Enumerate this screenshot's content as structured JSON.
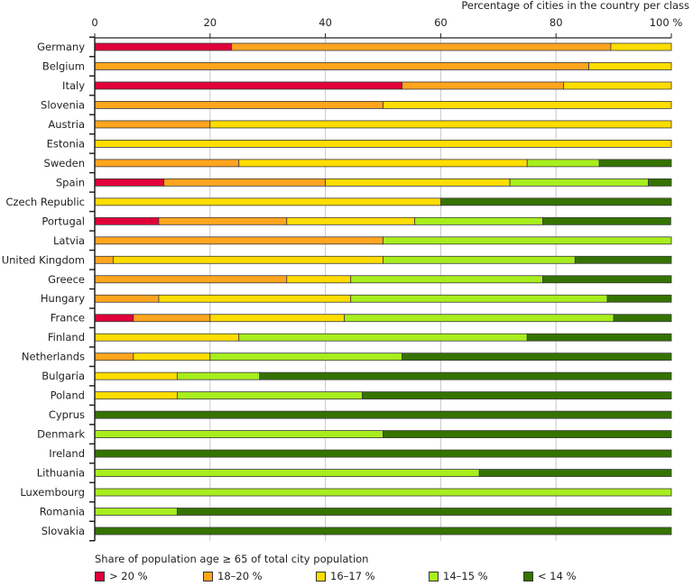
{
  "chart_data": {
    "type": "bar",
    "orientation": "horizontal",
    "stacked": true,
    "title": "",
    "xlabel": "Percentage of cities in the country per class",
    "ylabel": "",
    "xlim": [
      0,
      100
    ],
    "xticks": [
      "0",
      "20",
      "40",
      "60",
      "80",
      "100 %"
    ],
    "grid": true,
    "legend_title": "Share of population age ≥ 65 of total city population",
    "legend_position": "bottom",
    "categories": [
      "Germany",
      "Belgium",
      "Italy",
      "Slovenia",
      "Austria",
      "Estonia",
      "Sweden",
      "Spain",
      "Czech Republic",
      "Portugal",
      "Latvia",
      "United Kingdom",
      "Greece",
      "Hungary",
      "France",
      "Finland",
      "Netherlands",
      "Bulgaria",
      "Poland",
      "Cyprus",
      "Denmark",
      "Ireland",
      "Lithuania",
      "Luxembourg",
      "Romania",
      "Slovakia"
    ],
    "series": [
      {
        "name": "> 20 %",
        "color": "#e0003a",
        "values": [
          23.7,
          0,
          53.3,
          0,
          0,
          0,
          0,
          12,
          0,
          11.1,
          0,
          0,
          0,
          0,
          6.7,
          0,
          0,
          0,
          0,
          0,
          0,
          0,
          0,
          0,
          0,
          0
        ]
      },
      {
        "name": "18–20 %",
        "color": "#ffa51e",
        "values": [
          65.8,
          85.7,
          28.0,
          50,
          20,
          0,
          25,
          28,
          0,
          22.2,
          50,
          3.2,
          33.3,
          11.1,
          13.3,
          0,
          6.7,
          0,
          0,
          0,
          0,
          0,
          0,
          0,
          0,
          0
        ]
      },
      {
        "name": "16–17 %",
        "color": "#ffdd00",
        "values": [
          10.5,
          14.3,
          18.7,
          50,
          80,
          100,
          50,
          32,
          60,
          22.2,
          0,
          46.8,
          11.1,
          33.3,
          23.3,
          25,
          13.3,
          14.3,
          14.3,
          0,
          0,
          0,
          0,
          0,
          0,
          0
        ]
      },
      {
        "name": "14–15 %",
        "color": "#a8ee1e",
        "values": [
          0,
          0,
          0,
          0,
          0,
          0,
          12.5,
          24,
          0,
          22.2,
          50,
          33.3,
          33.3,
          44.5,
          46.7,
          50,
          33.3,
          14.3,
          32.1,
          0,
          50,
          0,
          66.7,
          100,
          14.3,
          0
        ]
      },
      {
        "name": "< 14 %",
        "color": "#357300",
        "values": [
          0,
          0,
          0,
          0,
          0,
          0,
          12.5,
          4,
          40,
          22.2,
          0,
          16.7,
          22.3,
          11.1,
          10,
          25,
          46.7,
          71.4,
          53.6,
          100,
          50,
          100,
          33.3,
          0,
          85.7,
          100
        ]
      }
    ]
  }
}
